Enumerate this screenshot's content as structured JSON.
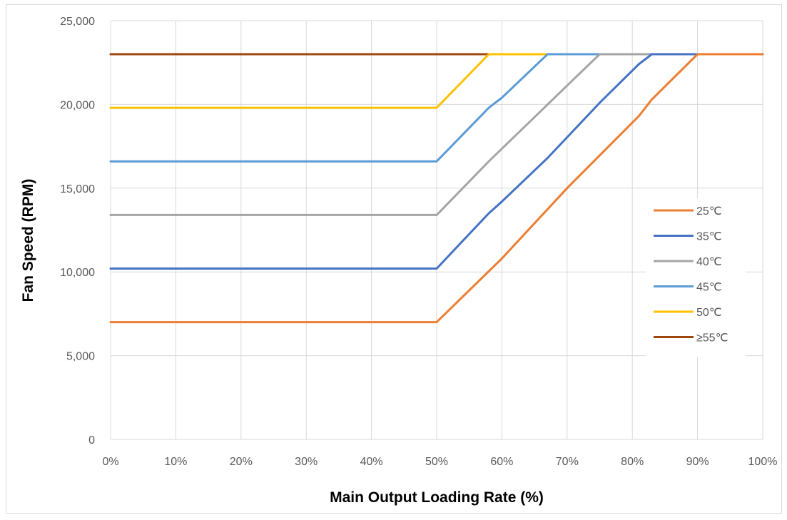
{
  "chart_data": {
    "type": "line",
    "title": "",
    "xlabel": "Main Output Loading Rate (%)",
    "ylabel": "Fan Speed (RPM)",
    "xlim": [
      0,
      100
    ],
    "ylim": [
      0,
      25000
    ],
    "x_ticks": [
      0,
      10,
      20,
      30,
      40,
      50,
      60,
      70,
      80,
      90,
      100
    ],
    "x_tick_labels": [
      "0%",
      "10%",
      "20%",
      "30%",
      "40%",
      "50%",
      "60%",
      "70%",
      "80%",
      "90%",
      "100%"
    ],
    "y_ticks": [
      0,
      5000,
      10000,
      15000,
      20000,
      25000
    ],
    "y_tick_labels": [
      "0",
      "5,000",
      "10,000",
      "15,000",
      "20,000",
      "25,000"
    ],
    "grid": true,
    "legend_position": "right",
    "series": [
      {
        "name": "25℃",
        "color": "#ED7D31",
        "x": [
          0,
          50,
          60,
          70,
          81,
          83,
          90,
          100
        ],
        "y": [
          7000,
          7000,
          10800,
          15000,
          19300,
          20300,
          23000,
          23000
        ]
      },
      {
        "name": "35℃",
        "color": "#4472C4",
        "x": [
          0,
          50,
          58,
          60,
          67,
          75,
          81,
          83,
          100
        ],
        "y": [
          10200,
          10200,
          13500,
          14200,
          16800,
          20100,
          22400,
          23000,
          23000
        ]
      },
      {
        "name": "40℃",
        "color": "#A5A5A5",
        "x": [
          0,
          50,
          58,
          71,
          75,
          100
        ],
        "y": [
          13400,
          13400,
          16600,
          21500,
          23000,
          23000
        ]
      },
      {
        "name": "45℃",
        "color": "#5B9BD5",
        "x": [
          0,
          50,
          58,
          60,
          67,
          100
        ],
        "y": [
          16600,
          16600,
          19800,
          20400,
          23000,
          23000
        ]
      },
      {
        "name": "50℃",
        "color": "#FFC000",
        "x": [
          0,
          50,
          58,
          100
        ],
        "y": [
          19800,
          19800,
          23000,
          23000
        ]
      },
      {
        "name": "≥55℃",
        "color": "#9E480E",
        "x": [
          0,
          100
        ],
        "y": [
          23000,
          23000
        ]
      }
    ]
  }
}
